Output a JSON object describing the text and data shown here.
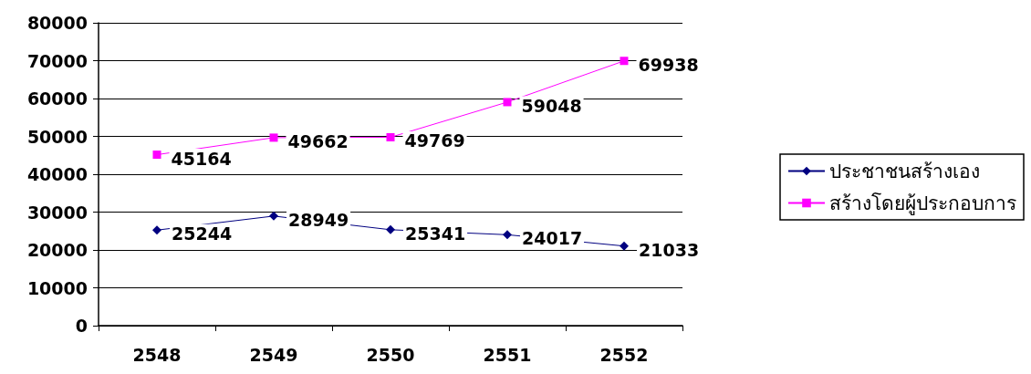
{
  "chart_data": {
    "type": "line",
    "categories": [
      "2548",
      "2549",
      "2550",
      "2551",
      "2552"
    ],
    "series": [
      {
        "name": "ประชาชนสร้างเอง",
        "color": "#000080",
        "marker": "diamond",
        "values": [
          25244,
          28949,
          25341,
          24017,
          21033
        ]
      },
      {
        "name": "สร้างโดยผู้ประกอบการ",
        "color": "#ff00ff",
        "marker": "square",
        "values": [
          45164,
          49662,
          49769,
          59048,
          69938
        ]
      }
    ],
    "ylim": [
      0,
      80000
    ],
    "yticks": [
      0,
      10000,
      20000,
      30000,
      40000,
      50000,
      60000,
      70000,
      80000
    ],
    "grid": "y",
    "legend": "right",
    "data_labels": true,
    "line_style": "solid"
  }
}
